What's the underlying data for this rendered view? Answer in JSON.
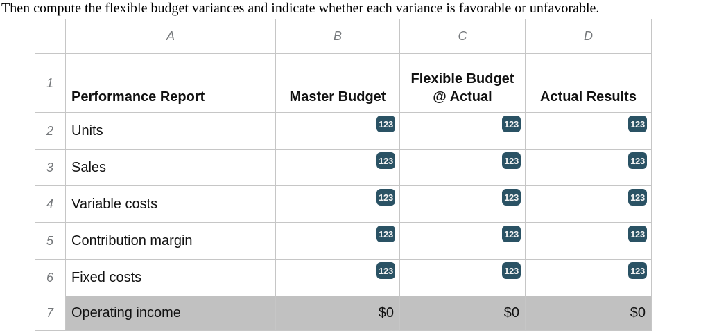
{
  "instruction": "Then compute the flexible budget variances and indicate whether each variance is favorable or unfavorable.",
  "colors": {
    "badge_background": "#2a5264",
    "badge_text": "#f3f3f3",
    "grid_line": "#c6c6c6",
    "header_gray_text": "#75787b",
    "total_row_background": "#c1c1c1",
    "cell_text": "#111111"
  },
  "sheet": {
    "column_letters": [
      "A",
      "B",
      "C",
      "D"
    ],
    "badge_label": "123",
    "header_row": {
      "number": "1",
      "label": "Performance Report",
      "col_b": "Master Budget",
      "col_c": "Flexible Budget @ Actual",
      "col_d": "Actual Results"
    },
    "data_rows": [
      {
        "number": "2",
        "label": "Units"
      },
      {
        "number": "3",
        "label": "Sales"
      },
      {
        "number": "4",
        "label": "Variable costs"
      },
      {
        "number": "5",
        "label": "Contribution margin"
      },
      {
        "number": "6",
        "label": "Fixed costs"
      }
    ],
    "total_row": {
      "number": "7",
      "label": "Operating income",
      "col_b": "$0",
      "col_c": "$0",
      "col_d": "$0"
    }
  }
}
